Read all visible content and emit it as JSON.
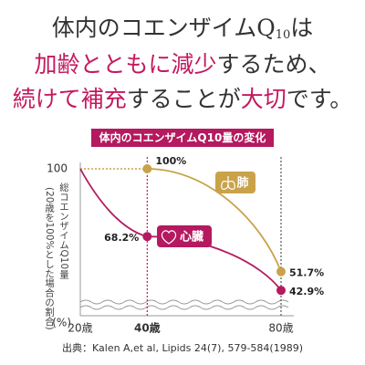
{
  "headline": {
    "line1": [
      "体内のコエンザイムQ",
      "10",
      "は"
    ],
    "line2": [
      "加齢とともに減少",
      "するため、"
    ],
    "line3": [
      "続けて補充",
      "することが",
      "大切",
      "です。"
    ]
  },
  "chart_data": {
    "type": "line",
    "title": "体内のコエンザイムQ10量の変化",
    "ylabel": "総コエンザイムQ10量",
    "ylabel_note": "(20歳を100%とした場合の割合)",
    "yunit": "(%)",
    "x": [
      20,
      40,
      80
    ],
    "xlim": [
      20,
      80
    ],
    "xticks": [
      {
        "value": 20,
        "label": "20歳"
      },
      {
        "value": 40,
        "label": "40歳"
      },
      {
        "value": 80,
        "label": "80歳"
      }
    ],
    "highlight_x": 40,
    "highlight_color": "#c4195f",
    "ylim": [
      40,
      100
    ],
    "yticks": [
      100
    ],
    "series": [
      {
        "name": "肺",
        "color": "#c9a24a",
        "values": [
          null,
          100,
          51.7
        ],
        "value_labels": [
          null,
          "100%",
          "51.7%"
        ]
      },
      {
        "name": "心臓",
        "color": "#b5195f",
        "values": [
          100,
          68.2,
          42.9
        ],
        "value_labels": [
          null,
          "68.2%",
          "42.9%"
        ]
      }
    ],
    "source": "出典：Kalen A,et al, Lipids 24(7), 579-584(1989)"
  }
}
